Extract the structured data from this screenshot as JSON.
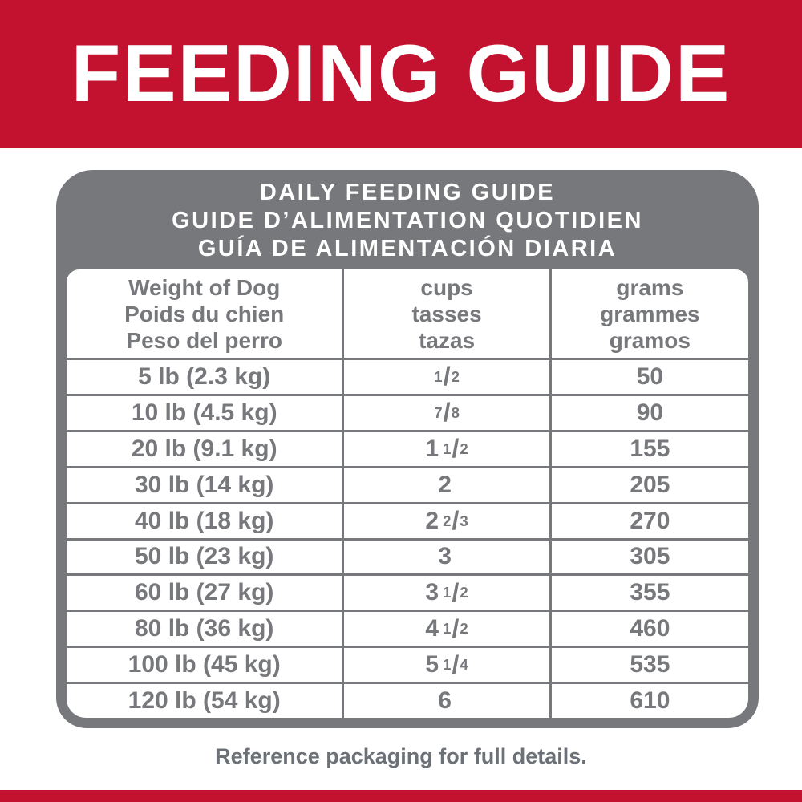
{
  "colors": {
    "brand_red": "#C31230",
    "panel_gray": "#77787B",
    "table_text_gray": "#77787B",
    "footer_text_gray": "#6B7176",
    "white": "#FFFFFF"
  },
  "banner": {
    "title": "FEEDING GUIDE"
  },
  "panel": {
    "title_lines": [
      "DAILY FEEDING GUIDE",
      "GUIDE D’ALIMENTATION QUOTIDIEN",
      "GUÍA DE ALIMENTACIÓN DIARIA"
    ]
  },
  "table": {
    "headers": [
      [
        "Weight of Dog",
        "Poids du chien",
        "Peso del perro"
      ],
      [
        "cups",
        "tasses",
        "tazas"
      ],
      [
        "grams",
        "grammes",
        "gramos"
      ]
    ],
    "rows": [
      {
        "weight": "5 lb (2.3 kg)",
        "cups_whole": "",
        "cups_num": "1",
        "cups_den": "2",
        "grams": "50"
      },
      {
        "weight": "10 lb (4.5 kg)",
        "cups_whole": "",
        "cups_num": "7",
        "cups_den": "8",
        "grams": "90"
      },
      {
        "weight": "20 lb (9.1 kg)",
        "cups_whole": "1",
        "cups_num": "1",
        "cups_den": "2",
        "grams": "155"
      },
      {
        "weight": "30 lb (14 kg)",
        "cups_whole": "2",
        "cups_num": "",
        "cups_den": "",
        "grams": "205"
      },
      {
        "weight": "40 lb (18 kg)",
        "cups_whole": "2",
        "cups_num": "2",
        "cups_den": "3",
        "grams": "270"
      },
      {
        "weight": "50 lb (23 kg)",
        "cups_whole": "3",
        "cups_num": "",
        "cups_den": "",
        "grams": "305"
      },
      {
        "weight": "60 lb (27 kg)",
        "cups_whole": "3",
        "cups_num": "1",
        "cups_den": "2",
        "grams": "355"
      },
      {
        "weight": "80 lb (36 kg)",
        "cups_whole": "4",
        "cups_num": "1",
        "cups_den": "2",
        "grams": "460"
      },
      {
        "weight": "100 lb (45 kg)",
        "cups_whole": "5",
        "cups_num": "1",
        "cups_den": "4",
        "grams": "535"
      },
      {
        "weight": "120 lb (54 kg)",
        "cups_whole": "6",
        "cups_num": "",
        "cups_den": "",
        "grams": "610"
      }
    ]
  },
  "footer": {
    "note": "Reference packaging for full details."
  }
}
